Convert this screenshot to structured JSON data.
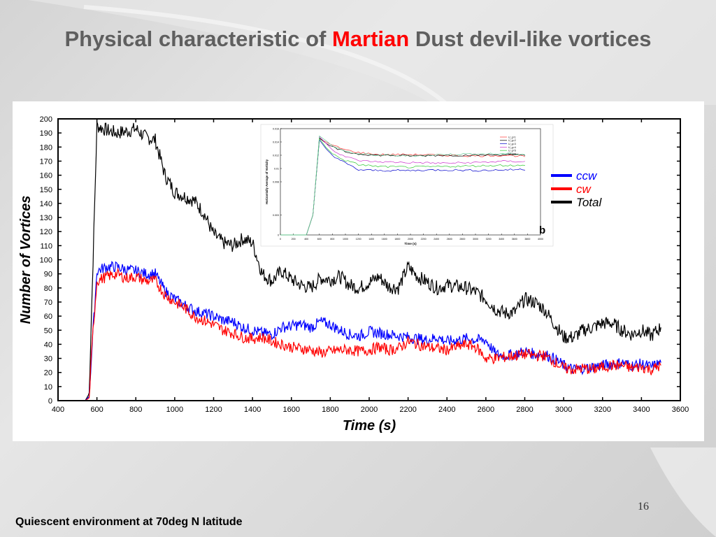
{
  "slide": {
    "title_prefix": "Physical characteristic of ",
    "title_highlight": "Martian",
    "title_suffix": " Dust devil-like vortices",
    "page_number": "16",
    "footer": "Quiescent environment at 70deg N latitude",
    "colors": {
      "title": "#5f5f5f",
      "highlight": "#ff0000"
    }
  },
  "chart_data": {
    "type": "line",
    "title": "",
    "xlabel": "Time (s)",
    "ylabel": "Number of Vortices",
    "xlim": [
      400,
      3600
    ],
    "ylim": [
      0,
      200
    ],
    "xticks": [
      400,
      600,
      800,
      1000,
      1200,
      1400,
      1600,
      1800,
      2000,
      2200,
      2400,
      2600,
      2800,
      3000,
      3200,
      3400,
      3600
    ],
    "yticks": [
      0,
      10,
      20,
      30,
      40,
      50,
      60,
      70,
      80,
      90,
      100,
      110,
      120,
      130,
      140,
      150,
      160,
      170,
      180,
      190,
      200
    ],
    "legend": {
      "placement": "right",
      "entries": [
        "ccw",
        "cw",
        "Total"
      ]
    },
    "series": [
      {
        "name": "Total",
        "color": "#000000",
        "x": [
          480,
          540,
          560,
          580,
          600,
          650,
          700,
          750,
          800,
          850,
          900,
          950,
          1000,
          1050,
          1100,
          1150,
          1200,
          1250,
          1300,
          1350,
          1400,
          1450,
          1500,
          1550,
          1600,
          1650,
          1700,
          1750,
          1800,
          1850,
          1900,
          1950,
          2000,
          2050,
          2100,
          2150,
          2200,
          2250,
          2300,
          2350,
          2400,
          2450,
          2500,
          2550,
          2600,
          2650,
          2700,
          2750,
          2800,
          2850,
          2900,
          2950,
          3000,
          3050,
          3100,
          3150,
          3200,
          3250,
          3300,
          3350,
          3400,
          3450,
          3500
        ],
        "y": [
          0,
          0,
          5,
          100,
          195,
          192,
          190,
          191,
          193,
          187,
          185,
          160,
          148,
          145,
          142,
          133,
          118,
          112,
          110,
          115,
          112,
          90,
          85,
          92,
          86,
          82,
          80,
          87,
          86,
          88,
          82,
          80,
          84,
          88,
          81,
          80,
          95,
          88,
          84,
          80,
          82,
          81,
          80,
          77,
          72,
          65,
          62,
          63,
          72,
          70,
          65,
          55,
          45,
          45,
          50,
          52,
          55,
          55,
          50,
          47,
          50,
          46,
          52
        ]
      },
      {
        "name": "ccw",
        "color": "#0000ff",
        "x": [
          480,
          540,
          560,
          580,
          600,
          650,
          700,
          750,
          800,
          850,
          900,
          950,
          1000,
          1050,
          1100,
          1150,
          1200,
          1250,
          1300,
          1350,
          1400,
          1450,
          1500,
          1550,
          1600,
          1650,
          1700,
          1750,
          1800,
          1850,
          1900,
          1950,
          2000,
          2050,
          2100,
          2150,
          2200,
          2250,
          2300,
          2350,
          2400,
          2450,
          2500,
          2550,
          2600,
          2650,
          2700,
          2750,
          2800,
          2850,
          2900,
          2950,
          3000,
          3050,
          3100,
          3150,
          3200,
          3250,
          3300,
          3350,
          3400,
          3450,
          3500
        ],
        "y": [
          0,
          0,
          3,
          50,
          92,
          95,
          95,
          93,
          92,
          90,
          90,
          78,
          72,
          68,
          64,
          62,
          60,
          57,
          56,
          52,
          50,
          48,
          47,
          52,
          53,
          54,
          52,
          56,
          54,
          50,
          47,
          46,
          49,
          48,
          47,
          46,
          45,
          44,
          43,
          45,
          42,
          43,
          44,
          43,
          43,
          33,
          32,
          33,
          35,
          33,
          33,
          30,
          25,
          22,
          23,
          24,
          25,
          26,
          27,
          25,
          26,
          24,
          27
        ]
      },
      {
        "name": "cw",
        "color": "#ff0000",
        "x": [
          480,
          540,
          560,
          580,
          600,
          650,
          700,
          750,
          800,
          850,
          900,
          950,
          1000,
          1050,
          1100,
          1150,
          1200,
          1250,
          1300,
          1350,
          1400,
          1450,
          1500,
          1550,
          1600,
          1650,
          1700,
          1750,
          1800,
          1850,
          1900,
          1950,
          2000,
          2050,
          2100,
          2150,
          2200,
          2250,
          2300,
          2350,
          2400,
          2450,
          2500,
          2550,
          2600,
          2650,
          2700,
          2750,
          2800,
          2850,
          2900,
          2950,
          3000,
          3050,
          3100,
          3150,
          3200,
          3250,
          3300,
          3350,
          3400,
          3450,
          3500
        ],
        "y": [
          0,
          0,
          2,
          50,
          85,
          88,
          90,
          87,
          88,
          85,
          85,
          75,
          70,
          66,
          60,
          57,
          54,
          50,
          48,
          45,
          44,
          45,
          42,
          40,
          38,
          37,
          36,
          34,
          35,
          36,
          36,
          35,
          36,
          38,
          36,
          37,
          42,
          40,
          38,
          37,
          36,
          38,
          40,
          38,
          30,
          30,
          31,
          32,
          33,
          32,
          32,
          28,
          23,
          22,
          23,
          22,
          24,
          25,
          25,
          23,
          24,
          22,
          25
        ]
      }
    ],
    "inset": {
      "type": "line",
      "title": "",
      "xlabel": "Time (s)",
      "ylabel": "Horizontally Average of Vorticity",
      "label": "b",
      "xlim": [
        0,
        4000
      ],
      "ylim": [
        0,
        0.016
      ],
      "xticks": [
        0,
        200,
        400,
        600,
        800,
        1000,
        1200,
        1400,
        1600,
        1800,
        2000,
        2200,
        2400,
        2600,
        2800,
        3000,
        3200,
        3400,
        3600,
        3800,
        4000
      ],
      "yticks": [
        0,
        0.003,
        0.008,
        0.01,
        0.012,
        0.014,
        0.016
      ],
      "legend": {
        "placement": "top-right",
        "entries": [
          "U_g=1",
          "U_g=2",
          "U_g=3",
          "U_g=4",
          "U_g=5",
          "U_g=6"
        ]
      },
      "series": [
        {
          "name": "U_g=1",
          "color": "#ff3333",
          "x": [
            0,
            400,
            500,
            600,
            700,
            800,
            1000,
            1200,
            1500,
            2000,
            2500,
            3000,
            3500,
            3800
          ],
          "y": [
            0,
            0,
            0.003,
            0.0145,
            0.014,
            0.0135,
            0.0128,
            0.0124,
            0.0121,
            0.0121,
            0.012,
            0.0119,
            0.012,
            0.0118
          ]
        },
        {
          "name": "U_g=2",
          "color": "#000000",
          "x": [
            0,
            400,
            500,
            600,
            700,
            800,
            1000,
            1200,
            1500,
            2000,
            2500,
            3000,
            3500,
            3800
          ],
          "y": [
            0,
            0,
            0.003,
            0.0146,
            0.0138,
            0.0132,
            0.0125,
            0.0122,
            0.012,
            0.0119,
            0.012,
            0.012,
            0.0121,
            0.012
          ]
        },
        {
          "name": "U_g=3",
          "color": "#0000cc",
          "x": [
            0,
            400,
            500,
            600,
            700,
            800,
            1000,
            1200,
            1500,
            2000,
            2500,
            3000,
            3500,
            3800
          ],
          "y": [
            0,
            0,
            0.003,
            0.0143,
            0.013,
            0.012,
            0.0108,
            0.0098,
            0.0097,
            0.0097,
            0.0098,
            0.0097,
            0.0098,
            0.0099
          ]
        },
        {
          "name": "U_g=4",
          "color": "#cc33cc",
          "x": [
            0,
            400,
            500,
            600,
            700,
            800,
            1000,
            1200,
            1500,
            2000,
            2500,
            3000,
            3500,
            3800
          ],
          "y": [
            0,
            0,
            0.003,
            0.0148,
            0.0138,
            0.0128,
            0.0118,
            0.0112,
            0.011,
            0.0109,
            0.0108,
            0.0109,
            0.0111,
            0.011
          ]
        },
        {
          "name": "U_g=5",
          "color": "#33cc33",
          "x": [
            0,
            400,
            500,
            600,
            700,
            800,
            1000,
            1200,
            1500,
            2000,
            2500,
            3000,
            3500,
            3800
          ],
          "y": [
            0,
            0,
            0.003,
            0.0145,
            0.0132,
            0.0122,
            0.0112,
            0.0106,
            0.0103,
            0.0102,
            0.0103,
            0.0104,
            0.0105,
            0.0104
          ]
        },
        {
          "name": "U_g=6",
          "color": "#66cc99",
          "x": [
            0,
            400,
            500,
            600,
            700,
            800,
            1000,
            1200,
            1500,
            2000,
            2500,
            3000,
            3500,
            3800
          ],
          "y": [
            0,
            0,
            0.003,
            0.0149,
            0.0142,
            0.0134,
            0.0126,
            0.0122,
            0.012,
            0.0119,
            0.0121,
            0.0122,
            0.0122,
            0.0121
          ]
        }
      ]
    }
  }
}
